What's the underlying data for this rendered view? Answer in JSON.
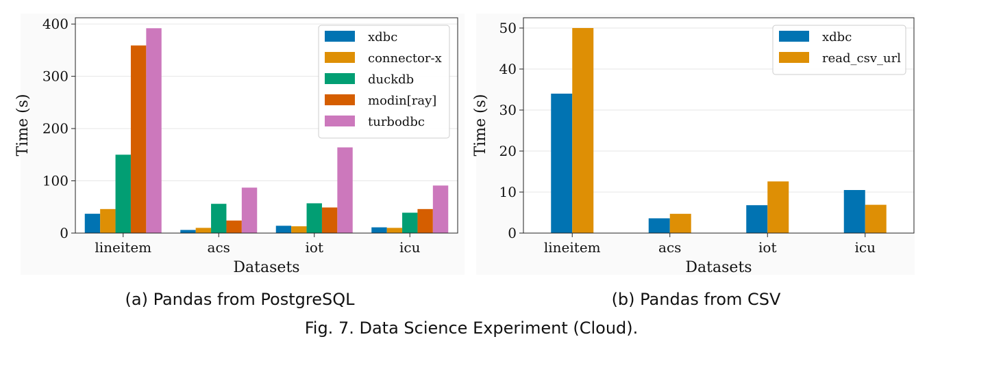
{
  "figure_caption": "Fig. 7.  Data Science Experiment (Cloud).",
  "colors": {
    "xdbc": "#0173b2",
    "connector-x": "#de8f05",
    "duckdb": "#029e73",
    "modin[ray]": "#d55e00",
    "turbodbc": "#cc78bc",
    "read_csv_url": "#de8f05"
  },
  "chart_data": [
    {
      "type": "bar",
      "subcaption": "(a) Pandas from PostgreSQL",
      "title": "",
      "xlabel": "Datasets",
      "ylabel": "Time (s)",
      "ylim": [
        0,
        412
      ],
      "yticks": [
        0,
        100,
        200,
        300,
        400
      ],
      "grid": true,
      "legend_position": "top-right",
      "categories": [
        "lineitem",
        "acs",
        "iot",
        "icu"
      ],
      "series": [
        {
          "name": "xdbc",
          "values": [
            37,
            6,
            14,
            11
          ]
        },
        {
          "name": "connector-x",
          "values": [
            46,
            10,
            13,
            10
          ]
        },
        {
          "name": "duckdb",
          "values": [
            150,
            56,
            57,
            39
          ]
        },
        {
          "name": "modin[ray]",
          "values": [
            359,
            24,
            49,
            46
          ]
        },
        {
          "name": "turbodbc",
          "values": [
            392,
            87,
            164,
            91
          ]
        }
      ]
    },
    {
      "type": "bar",
      "subcaption": "(b) Pandas from CSV",
      "title": "",
      "xlabel": "Datasets",
      "ylabel": "Time (s)",
      "ylim": [
        0,
        52.5
      ],
      "yticks": [
        0,
        10,
        20,
        30,
        40,
        50
      ],
      "grid": true,
      "legend_position": "top-right",
      "categories": [
        "lineitem",
        "acs",
        "iot",
        "icu"
      ],
      "series": [
        {
          "name": "xdbc",
          "values": [
            34,
            3.6,
            6.8,
            10.5
          ]
        },
        {
          "name": "read_csv_url",
          "values": [
            50,
            4.7,
            12.6,
            6.9
          ]
        }
      ]
    }
  ]
}
